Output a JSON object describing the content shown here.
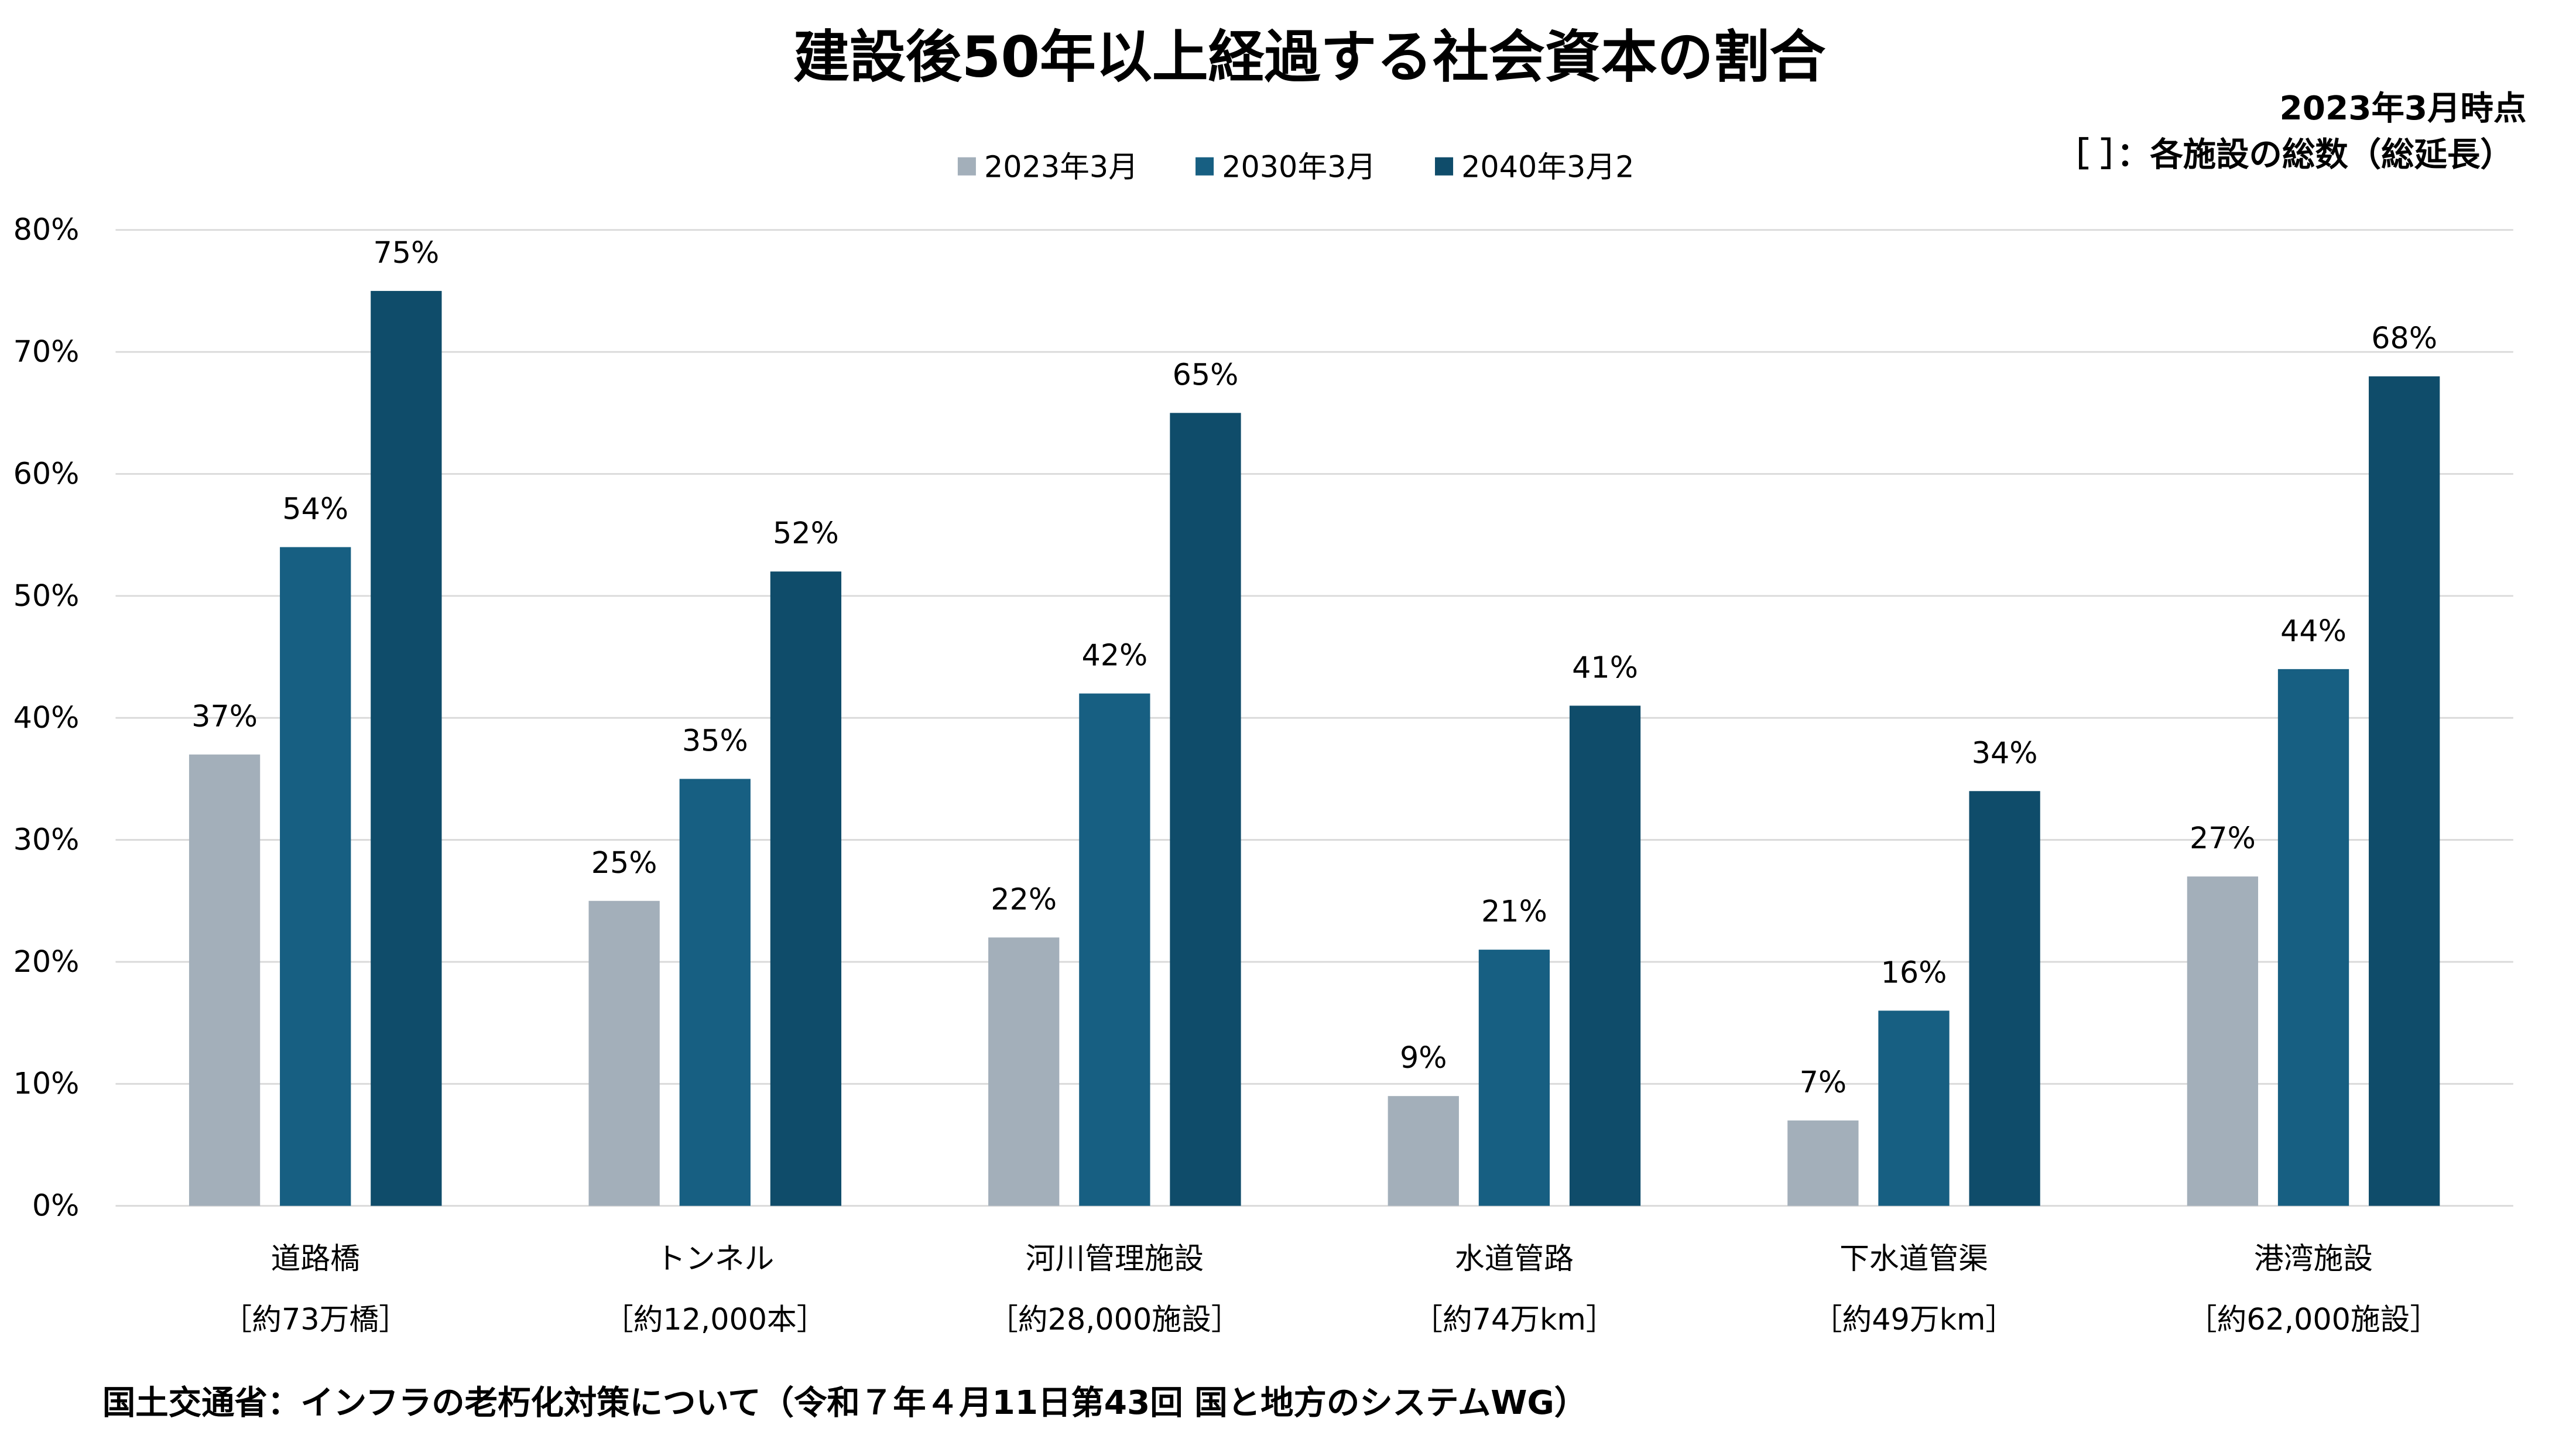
{
  "chart_data": {
    "type": "bar",
    "title": "建設後50年以上経過する社会資本の割合",
    "annotations": [
      "2023年3月時点",
      "［ ］：各施設の総数（総延長）"
    ],
    "categories": [
      "道路橋",
      "トンネル",
      "河川管理施設",
      "水道管路",
      "下水道管渠",
      "港湾施設"
    ],
    "category_sublabels": [
      "［約73万橋］",
      "［約12,000本］",
      "［約28,000施設］",
      "［約74万km］",
      "［約49万km］",
      "［約62,000施設］"
    ],
    "series": [
      {
        "name": "2023年3月",
        "color": "#a3afba",
        "values": [
          37,
          25,
          22,
          9,
          7,
          27
        ]
      },
      {
        "name": "2030年3月",
        "color": "#175f82",
        "values": [
          54,
          35,
          42,
          21,
          16,
          44
        ]
      },
      {
        "name": "2040年3月2",
        "color": "#0f4c6a",
        "values": [
          75,
          52,
          65,
          41,
          34,
          68
        ]
      }
    ],
    "ylim": [
      0,
      80
    ],
    "yticks": [
      0,
      10,
      20,
      30,
      40,
      50,
      60,
      70,
      80
    ],
    "ytick_format": "%",
    "grid": true,
    "legend_placement": "top-center",
    "xlabel": "",
    "ylabel": ""
  },
  "source": "国土交通省：インフラの老朽化対策について（令和７年４月11日第43回 国と地方のシステムWG）"
}
